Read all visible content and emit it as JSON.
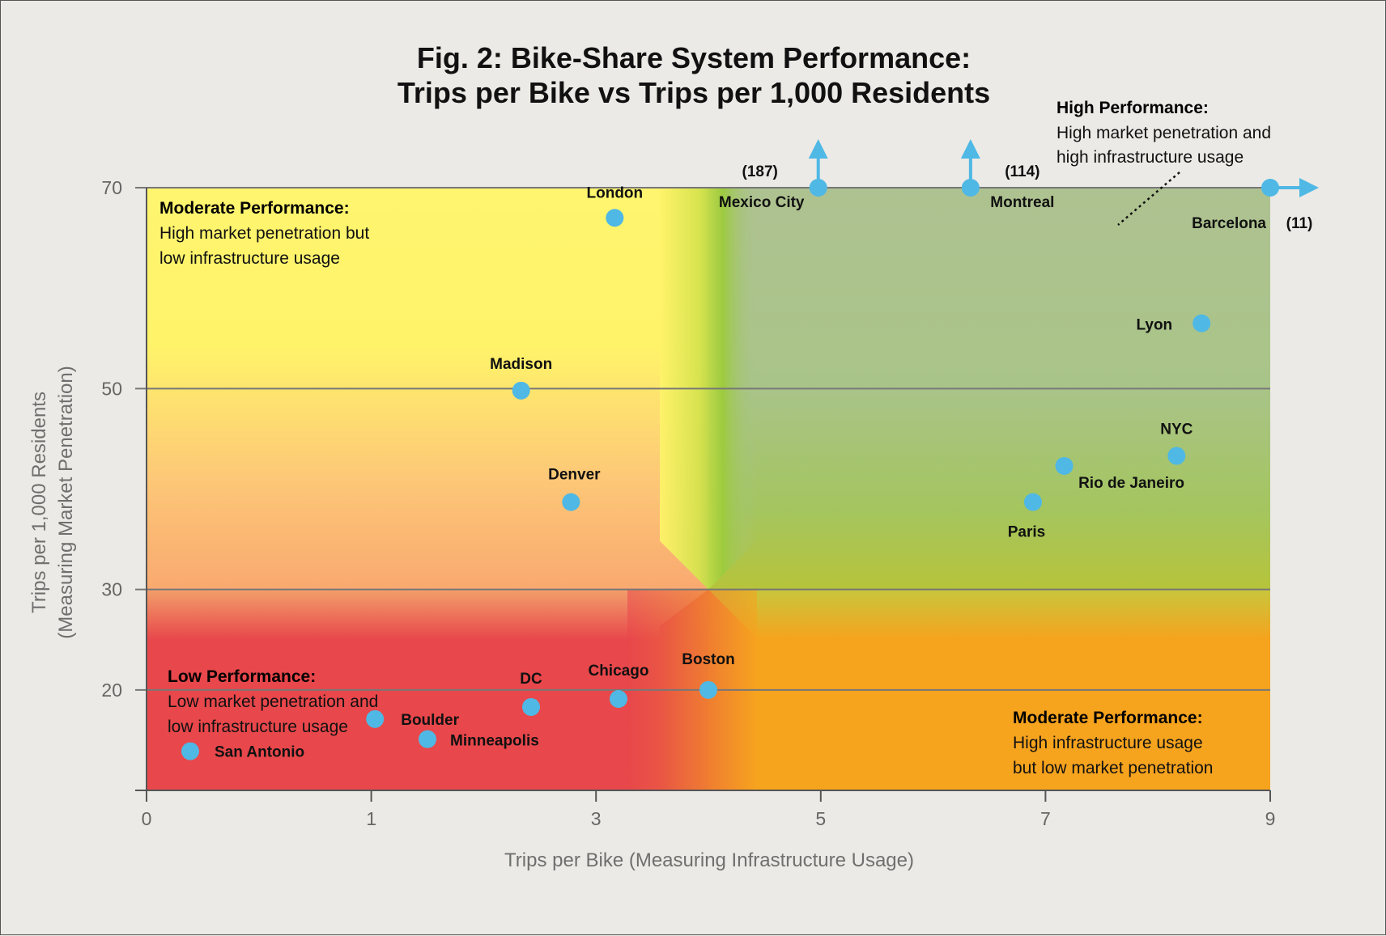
{
  "chart_data": {
    "type": "scatter",
    "title": [
      "Fig. 2: Bike-Share System Performance:",
      "Trips per Bike vs Trips per 1,000 Residents"
    ],
    "xlabel": "Trips per Bike (Measuring Infrastructure Usage)",
    "ylabel": [
      "Trips per 1,000 Residents",
      "(Measuring Market Penetration)"
    ],
    "xlim": [
      0,
      9
    ],
    "ylim": [
      10,
      70
    ],
    "x_ticks": [
      {
        "value": 0,
        "label": "0"
      },
      {
        "value": 1.8,
        "label": "1"
      },
      {
        "value": 3.6,
        "label": "3"
      },
      {
        "value": 5.4,
        "label": "5"
      },
      {
        "value": 7.2,
        "label": "7"
      },
      {
        "value": 9,
        "label": "9"
      }
    ],
    "y_ticks": [
      {
        "value": 20,
        "label": "20"
      },
      {
        "value": 30,
        "label": "30"
      },
      {
        "value": 50,
        "label": "50"
      },
      {
        "value": 70,
        "label": "70"
      }
    ],
    "grid": "horizontal",
    "points": [
      {
        "name": "London",
        "x": 3.75,
        "y": 67
      },
      {
        "name": "Madison",
        "x": 3.0,
        "y": 49.8
      },
      {
        "name": "Denver",
        "x": 3.4,
        "y": 38.7
      },
      {
        "name": "Mexico City",
        "x": 5.38,
        "y": 70,
        "off_scale_value": "(187)",
        "off_scale_direction": "up"
      },
      {
        "name": "Montreal",
        "x": 6.6,
        "y": 70,
        "off_scale_value": "(114)",
        "off_scale_direction": "up"
      },
      {
        "name": "Barcelona",
        "x": 9,
        "y": 70,
        "off_scale_value": "(11)",
        "off_scale_direction": "right"
      },
      {
        "name": "Lyon",
        "x": 8.45,
        "y": 56.5
      },
      {
        "name": "NYC",
        "x": 8.25,
        "y": 43.3
      },
      {
        "name": "Rio de Janeiro",
        "x": 7.35,
        "y": 42.3
      },
      {
        "name": "Paris",
        "x": 7.1,
        "y": 38.7
      },
      {
        "name": "Boston",
        "x": 4.5,
        "y": 20
      },
      {
        "name": "Chicago",
        "x": 3.78,
        "y": 19.1
      },
      {
        "name": "DC",
        "x": 3.08,
        "y": 18.3
      },
      {
        "name": "Boulder",
        "x": 1.83,
        "y": 17.1
      },
      {
        "name": "Minneapolis",
        "x": 2.25,
        "y": 15.1
      },
      {
        "name": "San Antonio",
        "x": 0.35,
        "y": 13.9
      }
    ],
    "regions": [
      {
        "name": "moderate-top-left",
        "title": "Moderate Performance:",
        "lines": [
          "High market penetration but",
          "low infrastructure usage"
        ]
      },
      {
        "name": "high-top-right",
        "title": "High Performance:",
        "lines": [
          "High market penetration and",
          "high infrastructure usage"
        ]
      },
      {
        "name": "low-bottom-left",
        "title": "Low Performance:",
        "lines": [
          "Low market penetration and",
          "low infrastructure usage"
        ]
      },
      {
        "name": "moderate-bottom-right",
        "title": "Moderate Performance:",
        "lines": [
          "High infrastructure usage",
          "but low market penetration"
        ]
      }
    ],
    "colors": {
      "marker": "#4fb8e5",
      "yellow": "#fff36a",
      "green": "#a9c38d",
      "red": "#e8474b",
      "orange": "#f6a31e",
      "grid": "#777777",
      "axis": "#555555"
    }
  }
}
